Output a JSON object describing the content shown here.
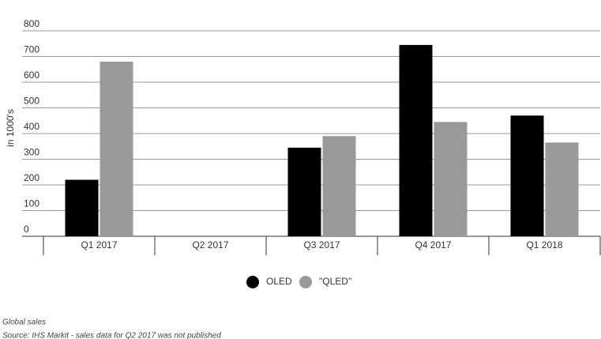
{
  "chart_data": {
    "type": "bar",
    "y_label": "in 1000's",
    "categories": [
      "Q1 2017",
      "Q2 2017",
      "Q3 2017",
      "Q4 2017",
      "Q1 2018"
    ],
    "series": [
      {
        "name": "OLED",
        "color": "#000000",
        "values": [
          220,
          null,
          345,
          745,
          470
        ]
      },
      {
        "name": "\"QLED\"",
        "color": "#999999",
        "values": [
          680,
          null,
          390,
          445,
          365
        ]
      }
    ],
    "ylim": [
      0,
      800
    ],
    "yticks": [
      0,
      100,
      200,
      300,
      400,
      500,
      600,
      700,
      800
    ],
    "grid": true,
    "notes": [
      "Global sales",
      "Source: IHS Markit - sales data for Q2 2017 was not published"
    ]
  }
}
